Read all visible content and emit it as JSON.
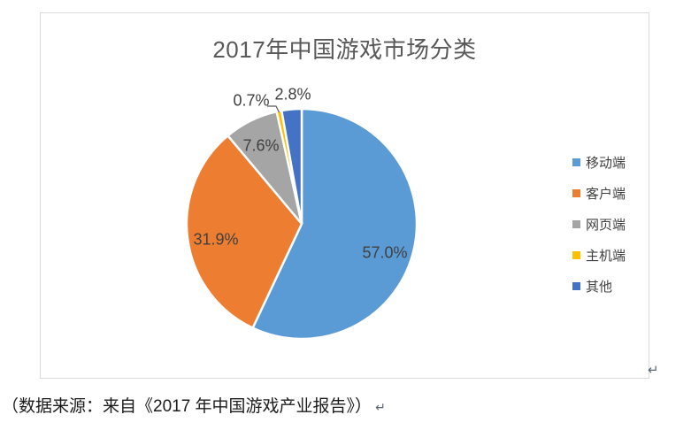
{
  "chart_data": {
    "type": "pie",
    "title": "2017年中国游戏市场分类",
    "legend_position": "right",
    "start_angle_deg": 0,
    "direction": "clockwise",
    "slice_border_color": "#FFFFFF",
    "slices": [
      {
        "name": "移动端",
        "value": 57.0,
        "label": "57.0%",
        "color": "#5B9BD5"
      },
      {
        "name": "客户端",
        "value": 31.9,
        "label": "31.9%",
        "color": "#ED7D31"
      },
      {
        "name": "网页端",
        "value": 7.6,
        "label": "7.6%",
        "color": "#A5A5A5"
      },
      {
        "name": "主机端",
        "value": 0.7,
        "label": "0.7%",
        "color": "#FFC000"
      },
      {
        "name": "其他",
        "value": 2.8,
        "label": "2.8%",
        "color": "#4472C4"
      }
    ]
  },
  "document": {
    "caption": "（数据来源：来自《2017 年中国游戏产业报告》）",
    "paragraph_mark": "↵"
  }
}
